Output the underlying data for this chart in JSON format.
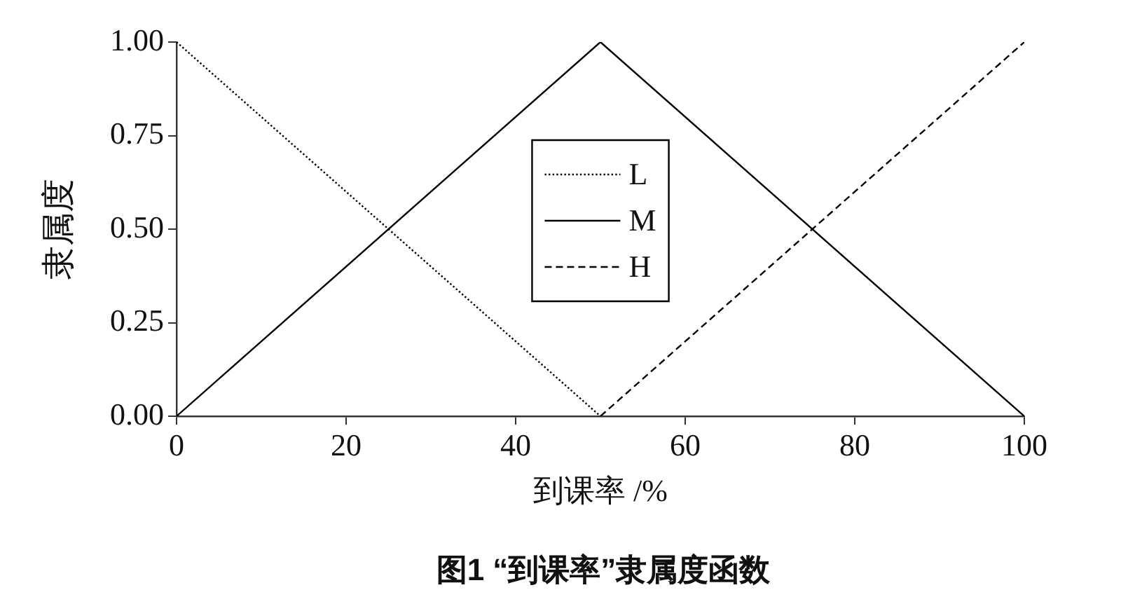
{
  "chart_data": {
    "type": "line",
    "xlabel": "到课率 /%",
    "ylabel": "隶属度",
    "annotations": [
      "图1 “到课率”隶属度函数"
    ],
    "series": [
      {
        "name": "L",
        "color": "#000000",
        "line_style": "dotted",
        "x": [
          0,
          50
        ],
        "values": [
          1,
          0
        ]
      },
      {
        "name": "M",
        "color": "#000000",
        "line_style": "solid",
        "x": [
          0,
          50,
          100
        ],
        "values": [
          0,
          1,
          0
        ]
      },
      {
        "name": "H",
        "color": "#000000",
        "line_style": "dashed",
        "x": [
          50,
          100
        ],
        "values": [
          0,
          1
        ]
      }
    ],
    "xlim": [
      0,
      100
    ],
    "xticks": [
      0,
      20,
      40,
      60,
      80,
      100
    ],
    "ylim": [
      0,
      1
    ],
    "yticks": [
      {
        "value": 0,
        "label": "0.00"
      },
      0.25,
      {
        "value": 0.5,
        "label": "0.50"
      },
      0.75,
      {
        "value": 1,
        "label": "1.00"
      }
    ],
    "legend": "center",
    "marker": "none"
  }
}
